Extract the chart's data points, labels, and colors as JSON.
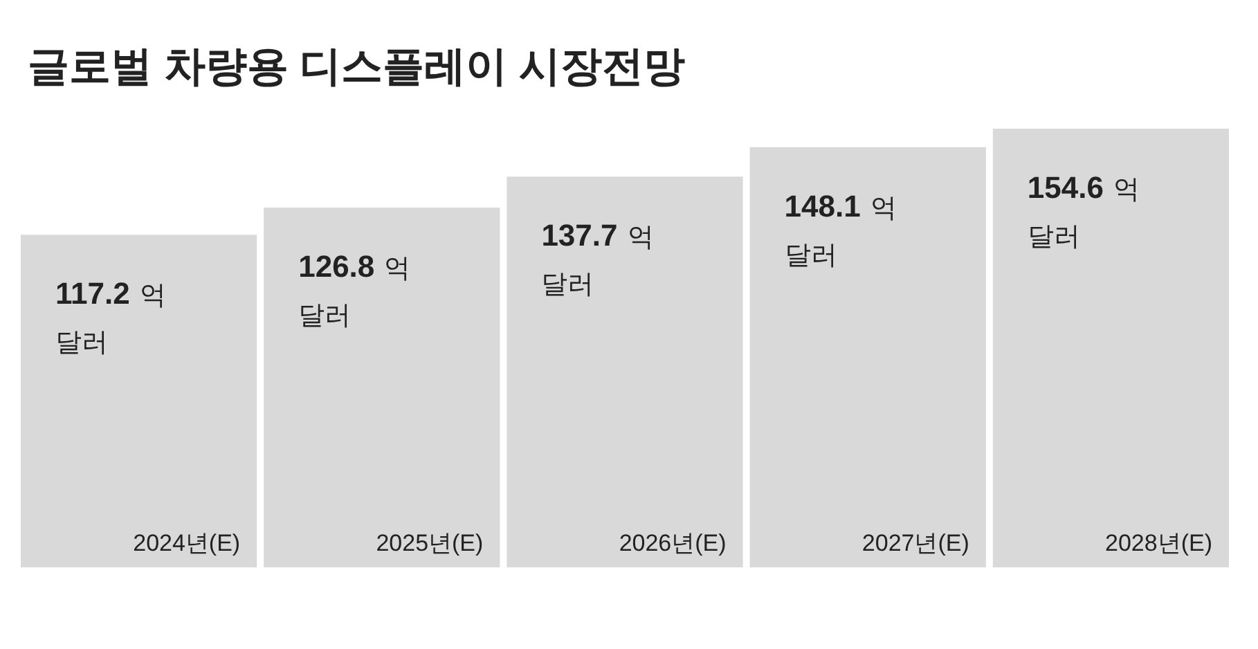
{
  "chart_data": {
    "type": "bar",
    "title": "글로벌 차량용 디스플레이 시장전망",
    "categories": [
      "2024년(E)",
      "2025년(E)",
      "2026년(E)",
      "2027년(E)",
      "2028년(E)"
    ],
    "values": [
      117.2,
      126.8,
      137.7,
      148.1,
      154.6
    ],
    "data_labels": true,
    "annotations": [
      "억",
      "달러",
      "억",
      "달러",
      "억",
      "달러",
      "억",
      "달러",
      "억",
      "달러"
    ],
    "color": "#d9d9d9"
  }
}
